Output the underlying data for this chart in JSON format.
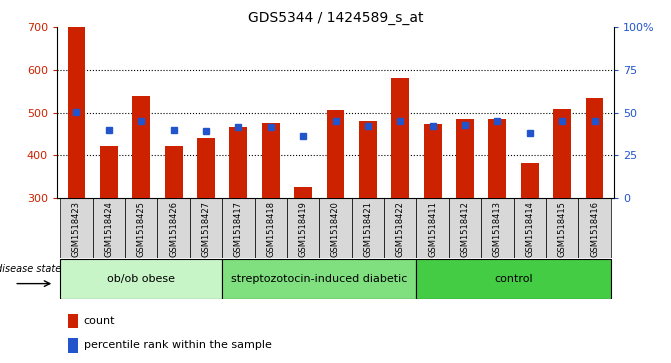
{
  "title": "GDS5344 / 1424589_s_at",
  "samples": [
    "GSM1518423",
    "GSM1518424",
    "GSM1518425",
    "GSM1518426",
    "GSM1518427",
    "GSM1518417",
    "GSM1518418",
    "GSM1518419",
    "GSM1518420",
    "GSM1518421",
    "GSM1518422",
    "GSM1518411",
    "GSM1518412",
    "GSM1518413",
    "GSM1518414",
    "GSM1518415",
    "GSM1518416"
  ],
  "counts": [
    700,
    422,
    538,
    422,
    440,
    465,
    475,
    325,
    507,
    480,
    582,
    472,
    485,
    485,
    382,
    508,
    535
  ],
  "percentile_left_vals": [
    502,
    460,
    480,
    460,
    456,
    465,
    465,
    444,
    480,
    468,
    480,
    468,
    470,
    480,
    453,
    480,
    480
  ],
  "groups": [
    {
      "label": "ob/ob obese",
      "start": 0,
      "end": 5,
      "color": "#c8f5c8"
    },
    {
      "label": "streptozotocin-induced diabetic",
      "start": 5,
      "end": 11,
      "color": "#80e080"
    },
    {
      "label": "control",
      "start": 11,
      "end": 17,
      "color": "#44cc44"
    }
  ],
  "ymin": 300,
  "ymax": 700,
  "yticks_left": [
    300,
    400,
    500,
    600,
    700
  ],
  "yticks_right": [
    0,
    25,
    50,
    75,
    100
  ],
  "right_tick_labels": [
    "0",
    "25",
    "50",
    "75",
    "100%"
  ],
  "bar_color": "#cc2200",
  "dot_color": "#2255cc",
  "bar_width": 0.55,
  "plot_bg_color": "#ffffff",
  "tick_label_bg": "#d8d8d8",
  "title_fontsize": 10,
  "tick_fontsize": 8,
  "sample_fontsize": 6,
  "group_fontsize": 8,
  "legend_fontsize": 8
}
